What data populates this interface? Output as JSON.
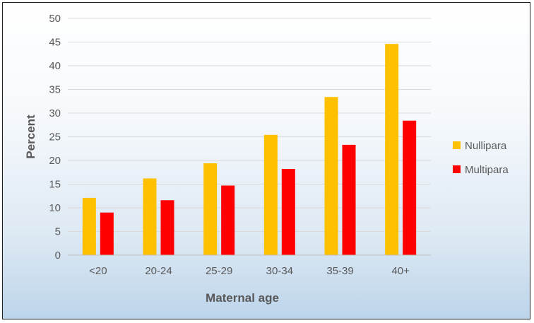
{
  "chart_data": {
    "type": "bar",
    "title": "",
    "xlabel": "Maternal age",
    "ylabel": "Percent",
    "categories": [
      "<20",
      "20-24",
      "25-29",
      "30-34",
      "35-39",
      "40+"
    ],
    "series": [
      {
        "name": "Nullipara",
        "values": [
          12.1,
          16.2,
          19.4,
          25.4,
          33.4,
          44.6
        ],
        "color": "#FFC000"
      },
      {
        "name": "Multipara",
        "values": [
          9.0,
          11.6,
          14.7,
          18.2,
          23.3,
          28.4
        ],
        "color": "#FF0000"
      }
    ],
    "ylim": [
      0,
      50
    ],
    "yticks": [
      0,
      5,
      10,
      15,
      20,
      25,
      30,
      35,
      40,
      45,
      50
    ],
    "grid": true,
    "legend_position": "right",
    "grid_color": "#d9d9d9",
    "axis_color": "#bfbfbf"
  }
}
